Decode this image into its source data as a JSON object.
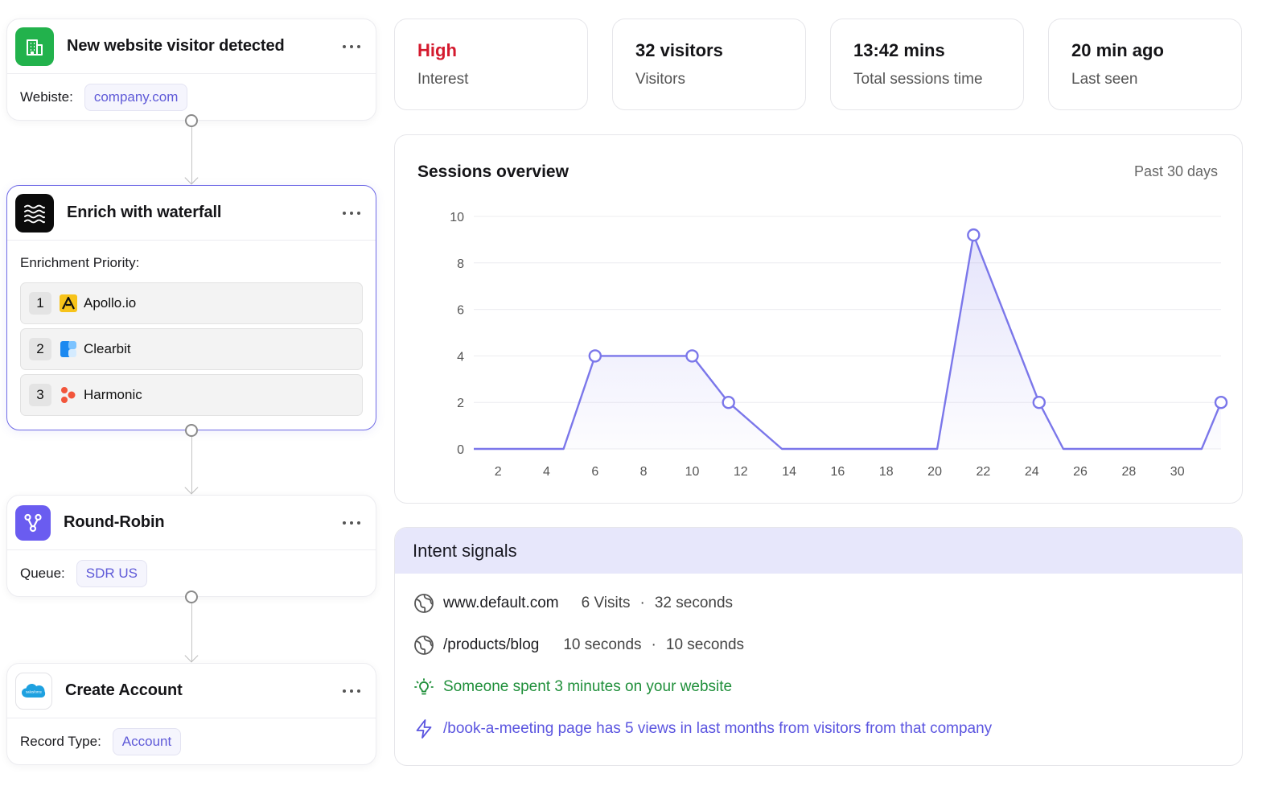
{
  "workflow": {
    "visitor": {
      "title": "New website visitor detected",
      "field_label": "Webiste:",
      "field_value": "company.com"
    },
    "enrich": {
      "title": "Enrich with waterfall",
      "priority_label": "Enrichment Priority:",
      "items": [
        {
          "rank": "1",
          "name": "Apollo.io"
        },
        {
          "rank": "2",
          "name": "Clearbit"
        },
        {
          "rank": "3",
          "name": "Harmonic"
        }
      ]
    },
    "round_robin": {
      "title": "Round-Robin",
      "field_label": "Queue:",
      "field_value": "SDR US"
    },
    "create_account": {
      "title": "Create Account",
      "field_label": "Record Type:",
      "field_value": "Account",
      "logo_text": "salesforce"
    }
  },
  "stats": [
    {
      "value": "High",
      "label": "Interest"
    },
    {
      "value": "32 visitors",
      "label": "Visitors"
    },
    {
      "value": "13:42 mins",
      "label": "Total sessions time"
    },
    {
      "value": "20 min ago",
      "label": "Last seen"
    }
  ],
  "sessions": {
    "title": "Sessions overview",
    "range": "Past 30 days"
  },
  "chart_data": {
    "type": "area",
    "title": "Sessions overview",
    "subtitle": "Past 30 days",
    "xlabel": "",
    "ylabel": "",
    "xlim": [
      1,
      31.8
    ],
    "ylim": [
      0,
      10
    ],
    "yticks": [
      0,
      2,
      4,
      6,
      8,
      10
    ],
    "xticks": [
      2,
      4,
      6,
      8,
      10,
      12,
      14,
      16,
      18,
      20,
      22,
      24,
      26,
      28,
      30
    ],
    "grid": true,
    "color": "#7b77ea",
    "series": [
      {
        "name": "Sessions",
        "x": [
          1,
          4.7,
          6,
          10,
          11.5,
          13.7,
          20.1,
          21.6,
          24.3,
          25.3,
          31,
          31.8
        ],
        "y": [
          0,
          0,
          4,
          4,
          2,
          0,
          0,
          9.2,
          2,
          0,
          0,
          2
        ]
      }
    ],
    "markers_at": [
      2,
      3,
      4,
      7,
      8,
      11
    ]
  },
  "intent": {
    "title": "Intent signals",
    "signals": [
      {
        "main": "www.default.com",
        "a": "6 Visits",
        "sep": "·",
        "b": "32 seconds"
      },
      {
        "main": "/products/blog",
        "a": "10 seconds",
        "sep": "·",
        "b": "10 seconds"
      }
    ],
    "insight": "Someone spent 3 minutes on your website",
    "highlight": "/book-a-meeting page has 5 views in last months from visitors from that company"
  },
  "colors": {
    "accent": "#6f6ae6",
    "high": "#d41a2e",
    "green": "#1f8f3a",
    "link": "#5b55e0"
  }
}
